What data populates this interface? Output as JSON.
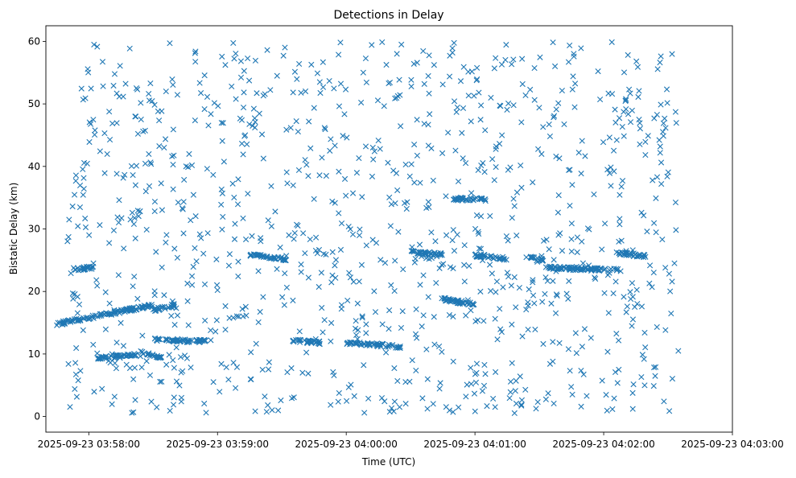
{
  "chart_data": {
    "type": "scatter",
    "title": "Detections in Delay",
    "xlabel": "Time (UTC)",
    "ylabel": "Bistatic Delay (km)",
    "marker": "x",
    "color": "#1f77b4",
    "grid": false,
    "legend": "none",
    "x_unit": "seconds after 2025-09-23 03:57:40 UTC",
    "xlim": [
      0,
      320
    ],
    "ylim": [
      -2.5,
      62.5
    ],
    "x_ticks": [
      {
        "value": 20,
        "label": "2025-09-23 03:58:00"
      },
      {
        "value": 80,
        "label": "2025-09-23 03:59:00"
      },
      {
        "value": 140,
        "label": "2025-09-23 04:00:00"
      },
      {
        "value": 200,
        "label": "2025-09-23 04:01:00"
      },
      {
        "value": 260,
        "label": "2025-09-23 04:02:00"
      },
      {
        "value": 320,
        "label": "2025-09-23 04:03:00"
      }
    ],
    "y_ticks": [
      0,
      10,
      20,
      30,
      40,
      50,
      60
    ],
    "tracks": [
      {
        "x": [
          5,
          50
        ],
        "y": [
          14.8,
          17.8
        ]
      },
      {
        "x": [
          50,
          60
        ],
        "y": [
          17.0,
          17.8
        ]
      },
      {
        "x": [
          23,
          42
        ],
        "y": [
          9.2,
          9.9
        ]
      },
      {
        "x": [
          44,
          54
        ],
        "y": [
          10.3,
          9.5
        ]
      },
      {
        "x": [
          50,
          75
        ],
        "y": [
          12.3,
          12.0
        ]
      },
      {
        "x": [
          95,
          112
        ],
        "y": [
          25.8,
          25.2
        ]
      },
      {
        "x": [
          115,
          128
        ],
        "y": [
          12.1,
          11.8
        ]
      },
      {
        "x": [
          140,
          165
        ],
        "y": [
          11.8,
          11.2
        ]
      },
      {
        "x": [
          183,
          200
        ],
        "y": [
          18.9,
          17.9
        ]
      },
      {
        "x": [
          170,
          185
        ],
        "y": [
          26.3,
          25.9
        ]
      },
      {
        "x": [
          200,
          215
        ],
        "y": [
          25.8,
          25.2
        ]
      },
      {
        "x": [
          225,
          232
        ],
        "y": [
          25.4,
          25.0
        ]
      },
      {
        "x": [
          233,
          268
        ],
        "y": [
          23.8,
          23.4
        ]
      },
      {
        "x": [
          266,
          280
        ],
        "y": [
          26.2,
          25.6
        ]
      },
      {
        "x": [
          12,
          22
        ],
        "y": [
          23.5,
          23.8
        ]
      },
      {
        "x": [
          190,
          205
        ],
        "y": [
          34.8,
          34.7
        ]
      }
    ],
    "points_summary": "About 1500 'x' markers spread between 03:57:50 and 04:02:35 UTC across delays 0–60 km, with dense linear tracks near 15–18 km, 9–12 km, 24–26 km and 34–35 km."
  }
}
